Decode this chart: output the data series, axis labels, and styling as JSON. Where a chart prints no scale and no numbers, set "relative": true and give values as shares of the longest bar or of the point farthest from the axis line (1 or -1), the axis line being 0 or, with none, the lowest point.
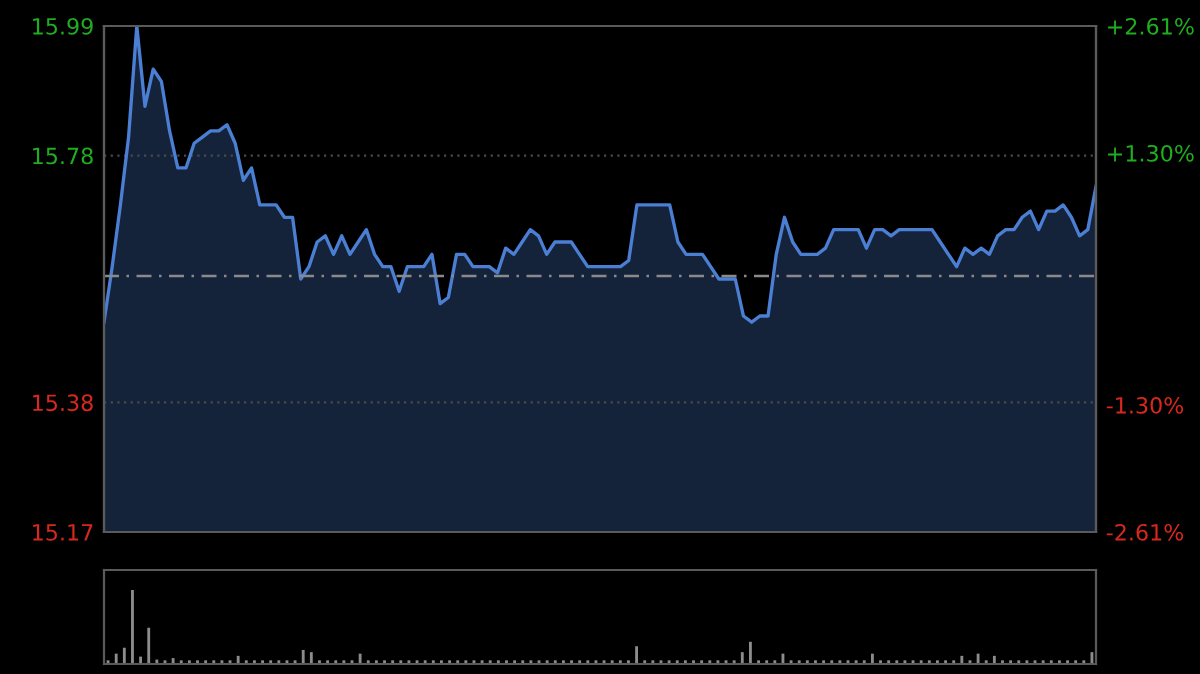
{
  "chart_data": [
    {
      "type": "area",
      "categories": [
        null,
        null,
        null,
        null,
        null,
        null,
        null,
        null,
        null,
        null,
        null,
        null,
        null,
        null,
        null,
        null,
        null,
        null,
        null,
        null,
        null,
        null,
        null,
        null,
        null,
        null,
        null,
        null,
        null,
        null,
        null,
        null,
        null,
        null,
        null,
        null,
        null,
        null,
        null,
        null,
        null,
        null,
        null,
        null,
        null,
        null,
        null,
        null,
        null,
        null,
        null,
        null,
        null,
        null,
        null,
        null,
        null,
        null,
        null,
        null,
        null,
        null,
        null,
        null,
        null,
        null,
        null,
        null,
        null,
        null,
        null,
        null,
        null,
        null,
        null,
        null,
        null,
        null,
        null,
        null,
        null,
        null,
        null,
        null,
        null,
        null,
        null,
        null,
        null,
        null,
        null,
        null,
        null,
        null,
        null,
        null,
        null,
        null,
        null,
        null,
        null,
        null,
        null,
        null,
        null,
        null,
        null,
        null,
        null,
        null,
        null,
        null,
        null,
        null,
        null,
        null,
        null,
        null,
        null,
        null,
        null,
        null
      ],
      "series": [
        {
          "color": "#4a7fd4",
          "values": [
            15.51,
            15.6,
            15.7,
            15.81,
            15.99,
            15.86,
            15.92,
            15.9,
            15.82,
            15.76,
            15.76,
            15.8,
            15.81,
            15.82,
            15.82,
            15.83,
            15.8,
            15.74,
            15.76,
            15.7,
            15.7,
            15.7,
            15.68,
            15.68,
            15.58,
            15.6,
            15.64,
            15.65,
            15.62,
            15.65,
            15.62,
            15.64,
            15.66,
            15.62,
            15.6,
            15.6,
            15.56,
            15.6,
            15.6,
            15.6,
            15.62,
            15.54,
            15.55,
            15.62,
            15.62,
            15.6,
            15.6,
            15.6,
            15.59,
            15.63,
            15.62,
            15.64,
            15.66,
            15.65,
            15.62,
            15.64,
            15.64,
            15.64,
            15.62,
            15.6,
            15.6,
            15.6,
            15.6,
            15.6,
            15.61,
            15.7,
            15.7,
            15.7,
            15.7,
            15.7,
            15.64,
            15.62,
            15.62,
            15.62,
            15.6,
            15.58,
            15.58,
            15.58,
            15.52,
            15.51,
            15.52,
            15.52,
            15.62,
            15.68,
            15.64,
            15.62,
            15.62,
            15.62,
            15.63,
            15.66,
            15.66,
            15.66,
            15.66,
            15.63,
            15.66,
            15.66,
            15.65,
            15.66,
            15.66,
            15.66,
            15.66,
            15.66,
            15.64,
            15.62,
            15.6,
            15.63,
            15.62,
            15.63,
            15.62,
            15.65,
            15.66,
            15.66,
            15.68,
            15.69,
            15.66,
            15.69,
            15.69,
            15.7,
            15.68,
            15.65,
            15.66,
            15.73
          ]
        }
      ],
      "ylim": [
        15.17,
        15.99
      ],
      "yticks": [
        15.17,
        15.38,
        15.78,
        15.99
      ],
      "y2lim": [
        -2.61,
        2.61
      ],
      "y2ticks": [
        {
          "value": -2.61,
          "label": "-2.61%"
        },
        {
          "value": -1.3,
          "label": "-1.30%"
        },
        {
          "value": 1.3,
          "label": "+1.30%"
        },
        {
          "value": 2.61,
          "label": "+2.61%"
        }
      ],
      "ref_lines": [
        {
          "axis": "y",
          "value": 15.585,
          "color": "#8a8a8a",
          "line_style": "dashed"
        }
      ],
      "grid": "y"
    },
    {
      "type": "bar",
      "relative": true,
      "categories": [
        null,
        null,
        null,
        null,
        null,
        null,
        null,
        null,
        null,
        null,
        null,
        null,
        null,
        null,
        null,
        null,
        null,
        null,
        null,
        null,
        null,
        null,
        null,
        null,
        null,
        null,
        null,
        null,
        null,
        null,
        null,
        null,
        null,
        null,
        null,
        null,
        null,
        null,
        null,
        null,
        null,
        null,
        null,
        null,
        null,
        null,
        null,
        null,
        null,
        null,
        null,
        null,
        null,
        null,
        null,
        null,
        null,
        null,
        null,
        null,
        null,
        null,
        null,
        null,
        null,
        null,
        null,
        null,
        null,
        null,
        null,
        null,
        null,
        null,
        null,
        null,
        null,
        null,
        null,
        null,
        null,
        null,
        null,
        null,
        null,
        null,
        null,
        null,
        null,
        null,
        null,
        null,
        null,
        null,
        null,
        null,
        null,
        null,
        null,
        null,
        null,
        null,
        null,
        null,
        null,
        null,
        null,
        null,
        null,
        null,
        null,
        null,
        null,
        null,
        null,
        null,
        null,
        null,
        null,
        null,
        null,
        null
      ],
      "values": [
        0.05,
        0.14,
        0.22,
        1.0,
        0.1,
        0.49,
        0.06,
        0.05,
        0.08,
        0.05,
        0.05,
        0.05,
        0.05,
        0.05,
        0.05,
        0.05,
        0.11,
        0.05,
        0.05,
        0.05,
        0.05,
        0.05,
        0.05,
        0.05,
        0.19,
        0.16,
        0.05,
        0.05,
        0.05,
        0.05,
        0.05,
        0.14,
        0.05,
        0.05,
        0.05,
        0.05,
        0.05,
        0.05,
        0.05,
        0.05,
        0.05,
        0.05,
        0.05,
        0.05,
        0.05,
        0.05,
        0.05,
        0.05,
        0.05,
        0.05,
        0.05,
        0.05,
        0.05,
        0.05,
        0.05,
        0.05,
        0.05,
        0.05,
        0.05,
        0.05,
        0.05,
        0.05,
        0.05,
        0.05,
        0.05,
        0.24,
        0.05,
        0.05,
        0.05,
        0.05,
        0.05,
        0.05,
        0.05,
        0.05,
        0.05,
        0.05,
        0.05,
        0.05,
        0.16,
        0.3,
        0.05,
        0.05,
        0.05,
        0.14,
        0.05,
        0.05,
        0.05,
        0.05,
        0.05,
        0.05,
        0.05,
        0.05,
        0.05,
        0.05,
        0.14,
        0.05,
        0.05,
        0.05,
        0.05,
        0.05,
        0.05,
        0.05,
        0.05,
        0.05,
        0.05,
        0.11,
        0.05,
        0.14,
        0.05,
        0.11,
        0.05,
        0.05,
        0.05,
        0.05,
        0.05,
        0.05,
        0.05,
        0.05,
        0.05,
        0.05,
        0.05,
        0.16
      ],
      "color": "#8c8c8c"
    }
  ]
}
